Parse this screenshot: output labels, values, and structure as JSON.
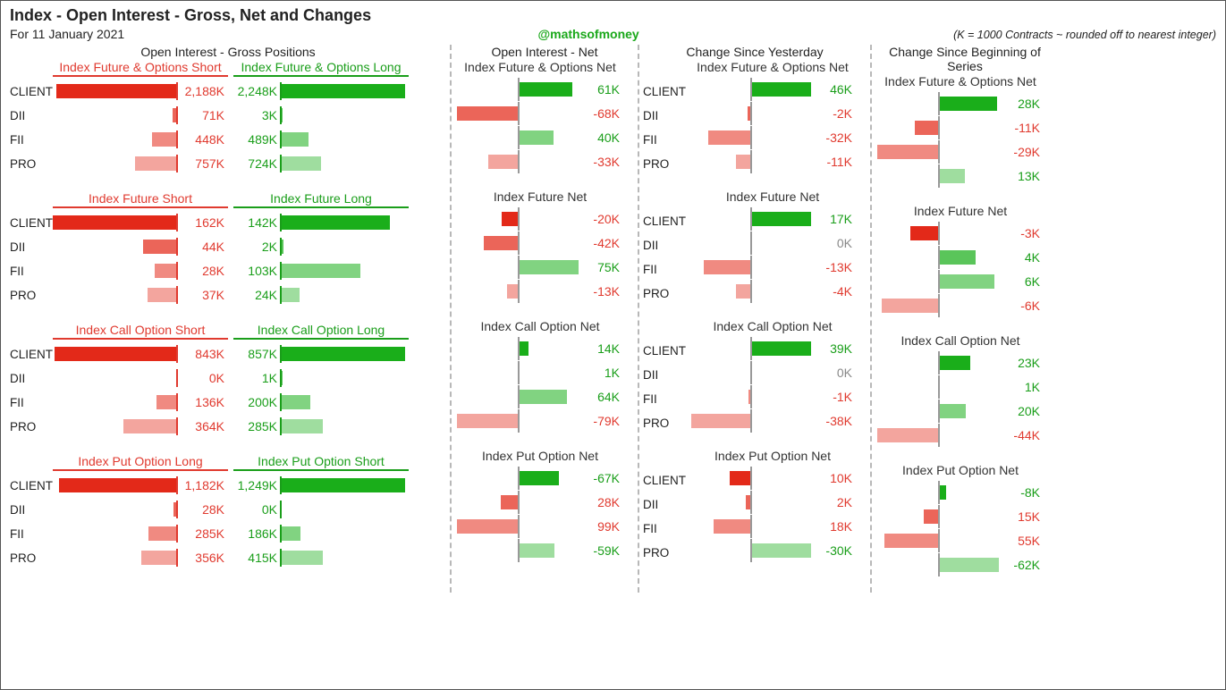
{
  "title": "Index - Open Interest - Gross, Net and Changes",
  "subtitle": "For 11 January 2021",
  "handle": "@mathsofmoney",
  "note": "(K = 1000 Contracts ~ rounded off to nearest integer)",
  "colors": {
    "red": "#e32919",
    "green": "#1aae1a",
    "neutral": "#888888",
    "text_red": "#e03a2f",
    "text_green": "#1a9e1a",
    "text_black": "#333333"
  },
  "fonts": {
    "title_size": 18,
    "header_size": 14,
    "label_size": 13.5,
    "value_size": 14
  },
  "categories": [
    "CLIENT",
    "DII",
    "FII",
    "PRO"
  ],
  "cat_opacity": [
    1.0,
    0.72,
    0.55,
    0.42
  ],
  "supertitles": {
    "gross": "Open Interest - Gross Positions",
    "net": "Open Interest - Net",
    "chg_y": "Change Since Yesterday",
    "chg_s": "Change Since Beginning of Series"
  },
  "sections": [
    {
      "short_title": "Index Future & Options Short",
      "long_title": "Index Future & Options Long",
      "net_title": "Index Future & Options Net",
      "chg_title": "Index Future & Options Net",
      "short": [
        2188,
        71,
        448,
        757
      ],
      "long": [
        2248,
        3,
        489,
        724
      ],
      "net": [
        61,
        -68,
        40,
        -33
      ],
      "chg_y": [
        46,
        -2,
        -32,
        -11
      ],
      "chg_s": [
        28,
        -11,
        -29,
        13
      ],
      "gross_max": 2248,
      "net_max": 68,
      "chg_y_max": 46,
      "chg_s_max": 29
    },
    {
      "short_title": "Index Future Short",
      "long_title": "Index Future Long",
      "net_title": "Index Future Net",
      "chg_title": "Index Future Net",
      "short": [
        162,
        44,
        28,
        37
      ],
      "long": [
        142,
        2,
        103,
        24
      ],
      "net": [
        -20,
        -42,
        75,
        -13
      ],
      "chg_y": [
        17,
        0,
        -13,
        -4
      ],
      "chg_s": [
        -3,
        4,
        6,
        -6
      ],
      "gross_max": 162,
      "net_max": 75,
      "chg_y_max": 17,
      "chg_s_max": 6.5
    },
    {
      "short_title": "Index Call Option Short",
      "long_title": "Index Call Option Long",
      "net_title": "Index Call Option Net",
      "chg_title": "Index Call Option Net",
      "short": [
        843,
        0,
        136,
        364
      ],
      "long": [
        857,
        1,
        200,
        285
      ],
      "net": [
        14,
        1,
        64,
        -79
      ],
      "chg_y": [
        39,
        0,
        -1,
        -38
      ],
      "chg_s": [
        23,
        1,
        20,
        -44
      ],
      "gross_max": 857,
      "net_max": 79,
      "chg_y_max": 39,
      "chg_s_max": 44
    },
    {
      "short_title": "Index Put Option Long",
      "long_title": "Index Put Option Short",
      "net_title": "Index Put Option Net",
      "chg_title": "Index Put Option Net",
      "short": [
        1182,
        28,
        285,
        356
      ],
      "long": [
        1249,
        0,
        186,
        415
      ],
      "net": [
        -67,
        28,
        99,
        -59
      ],
      "chg_y": [
        10,
        2,
        18,
        -30
      ],
      "chg_s": [
        -8,
        15,
        55,
        -62
      ],
      "net_invert": true,
      "chg_invert": true,
      "gross_max": 1249,
      "net_max": 99,
      "chg_y_max": 30,
      "chg_s_max": 62
    }
  ]
}
